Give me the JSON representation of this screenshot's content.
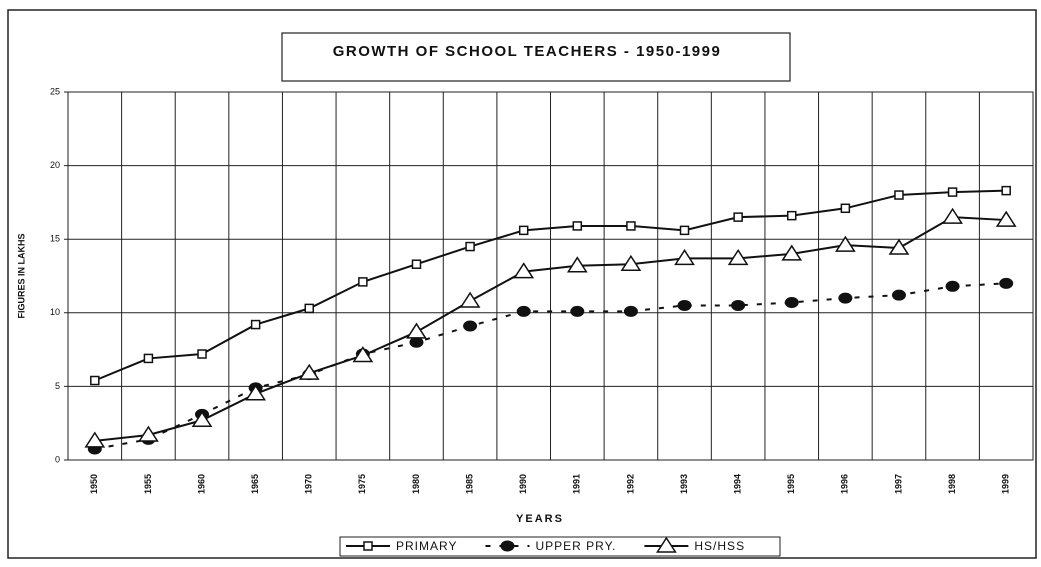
{
  "chart_data": {
    "type": "line",
    "title": "GROWTH OF SCHOOL TEACHERS - 1950-1999",
    "x_label": "YEARS",
    "y_label": "FIGURES IN LAKHS",
    "categories": [
      "1950",
      "1955",
      "1960",
      "1965",
      "1970",
      "1975",
      "1980",
      "1985",
      "1990",
      "1991",
      "1992",
      "1993",
      "1994",
      "1995",
      "1996",
      "1997",
      "1998",
      "1999"
    ],
    "series": [
      {
        "name": "PRIMARY",
        "color": "#111111",
        "marker": "square",
        "dash": "solid",
        "values": [
          5.4,
          6.9,
          7.2,
          9.2,
          10.3,
          12.1,
          13.3,
          14.5,
          15.6,
          15.9,
          15.9,
          15.6,
          16.5,
          16.6,
          17.1,
          18.0,
          18.2,
          18.3
        ]
      },
      {
        "name": "UPPER PRY.",
        "color": "#111111",
        "marker": "circle",
        "dash": "dashed",
        "values": [
          0.75,
          1.4,
          3.1,
          4.9,
          5.8,
          7.2,
          8.0,
          9.1,
          10.1,
          10.1,
          10.1,
          10.5,
          10.5,
          10.7,
          11.0,
          11.2,
          11.8,
          12.0
        ]
      },
      {
        "name": "HS/HSS",
        "color": "#111111",
        "marker": "triangle",
        "dash": "solid",
        "values": [
          1.3,
          1.7,
          2.7,
          4.5,
          5.9,
          7.1,
          8.7,
          10.8,
          12.8,
          13.2,
          13.3,
          13.7,
          13.7,
          14.0,
          14.6,
          14.4,
          16.5,
          16.3
        ]
      }
    ],
    "ylim": [
      0,
      25
    ],
    "yticks": [
      0,
      5,
      10,
      15,
      20,
      25
    ],
    "grid": true,
    "legend": "bottom"
  }
}
